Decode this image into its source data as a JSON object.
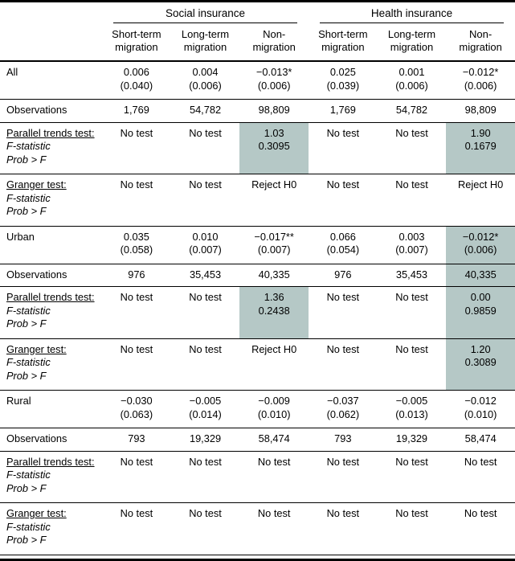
{
  "colors": {
    "highlight": "#b5c8c6",
    "rule": "#000000",
    "background": "#ffffff"
  },
  "header": {
    "groups": [
      {
        "label": "Social insurance"
      },
      {
        "label": "Health insurance"
      }
    ],
    "columns": [
      "Short-term\nmigration",
      "Long-term\nmigration",
      "Non-\nmigration",
      "Short-term\nmigration",
      "Long-term\nmigration",
      "Non-\nmigration"
    ]
  },
  "rows": [
    {
      "name": "all-coefficient",
      "kind": "coef",
      "label": [
        "All"
      ],
      "cells": [
        {
          "lines": [
            "0.006",
            "(0.040)"
          ]
        },
        {
          "lines": [
            "0.004",
            "(0.006)"
          ]
        },
        {
          "lines": [
            "−0.013*",
            "(0.006)"
          ]
        },
        {
          "lines": [
            "0.025",
            "(0.039)"
          ]
        },
        {
          "lines": [
            "0.001",
            "(0.006)"
          ]
        },
        {
          "lines": [
            "−0.012*",
            "(0.006)"
          ]
        }
      ]
    },
    {
      "name": "all-observations",
      "kind": "obs",
      "label": [
        "Observations"
      ],
      "cells": [
        {
          "lines": [
            "1,769"
          ]
        },
        {
          "lines": [
            "54,782"
          ]
        },
        {
          "lines": [
            "98,809"
          ]
        },
        {
          "lines": [
            "1,769"
          ]
        },
        {
          "lines": [
            "54,782"
          ]
        },
        {
          "lines": [
            "98,809"
          ]
        }
      ]
    },
    {
      "name": "all-parallel-trends-test",
      "kind": "test",
      "label": [
        "Parallel trends test:",
        "F-statistic",
        "Prob > F"
      ],
      "cells": [
        {
          "lines": [
            "No test"
          ]
        },
        {
          "lines": [
            "No test"
          ]
        },
        {
          "lines": [
            "1.03",
            "0.3095"
          ],
          "hl": true
        },
        {
          "lines": [
            "No test"
          ]
        },
        {
          "lines": [
            "No test"
          ]
        },
        {
          "lines": [
            "1.90",
            "0.1679"
          ],
          "hl": true
        }
      ]
    },
    {
      "name": "all-granger-test",
      "kind": "test",
      "label": [
        "Granger test:",
        "F-statistic",
        "Prob > F"
      ],
      "cells": [
        {
          "lines": [
            "No test"
          ]
        },
        {
          "lines": [
            "No test"
          ]
        },
        {
          "lines": [
            "Reject H0"
          ]
        },
        {
          "lines": [
            "No test"
          ]
        },
        {
          "lines": [
            "No test"
          ]
        },
        {
          "lines": [
            "Reject H0"
          ]
        }
      ]
    },
    {
      "name": "urban-coefficient",
      "kind": "coef",
      "label": [
        "Urban"
      ],
      "cells": [
        {
          "lines": [
            "0.035",
            "(0.058)"
          ]
        },
        {
          "lines": [
            "0.010",
            "(0.007)"
          ]
        },
        {
          "lines": [
            "−0.017**",
            "(0.007)"
          ]
        },
        {
          "lines": [
            "0.066",
            "(0.054)"
          ]
        },
        {
          "lines": [
            "0.003",
            "(0.007)"
          ]
        },
        {
          "lines": [
            "−0.012*",
            "(0.006)"
          ],
          "hl": true
        }
      ]
    },
    {
      "name": "urban-observations",
      "kind": "obs",
      "label": [
        "Observations"
      ],
      "cells": [
        {
          "lines": [
            "976"
          ]
        },
        {
          "lines": [
            "35,453"
          ]
        },
        {
          "lines": [
            "40,335"
          ]
        },
        {
          "lines": [
            "976"
          ]
        },
        {
          "lines": [
            "35,453"
          ]
        },
        {
          "lines": [
            "40,335"
          ],
          "hl": true
        }
      ]
    },
    {
      "name": "urban-parallel-trends-test",
      "kind": "test",
      "label": [
        "Parallel trends test:",
        "F-statistic",
        "Prob > F"
      ],
      "cells": [
        {
          "lines": [
            "No test"
          ]
        },
        {
          "lines": [
            "No test"
          ]
        },
        {
          "lines": [
            "1.36",
            "0.2438"
          ],
          "hl": true
        },
        {
          "lines": [
            "No test"
          ]
        },
        {
          "lines": [
            "No test"
          ]
        },
        {
          "lines": [
            "0.00",
            "0.9859"
          ],
          "hl": true
        }
      ]
    },
    {
      "name": "urban-granger-test",
      "kind": "test",
      "label": [
        "Granger test:",
        "F-statistic",
        "Prob > F"
      ],
      "cells": [
        {
          "lines": [
            "No test"
          ]
        },
        {
          "lines": [
            "No test"
          ]
        },
        {
          "lines": [
            "Reject H0"
          ]
        },
        {
          "lines": [
            "No test"
          ]
        },
        {
          "lines": [
            "No test"
          ]
        },
        {
          "lines": [
            "1.20",
            "0.3089"
          ],
          "hl": true
        }
      ]
    },
    {
      "name": "rural-coefficient",
      "kind": "coef",
      "label": [
        "Rural"
      ],
      "cells": [
        {
          "lines": [
            "−0.030",
            "(0.063)"
          ]
        },
        {
          "lines": [
            "−0.005",
            "(0.014)"
          ]
        },
        {
          "lines": [
            "−0.009",
            "(0.010)"
          ]
        },
        {
          "lines": [
            "−0.037",
            "(0.062)"
          ]
        },
        {
          "lines": [
            "−0.005",
            "(0.013)"
          ]
        },
        {
          "lines": [
            "−0.012",
            "(0.010)"
          ]
        }
      ]
    },
    {
      "name": "rural-observations",
      "kind": "obs",
      "label": [
        "Observations"
      ],
      "cells": [
        {
          "lines": [
            "793"
          ]
        },
        {
          "lines": [
            "19,329"
          ]
        },
        {
          "lines": [
            "58,474"
          ]
        },
        {
          "lines": [
            "793"
          ]
        },
        {
          "lines": [
            "19,329"
          ]
        },
        {
          "lines": [
            "58,474"
          ]
        }
      ]
    },
    {
      "name": "rural-parallel-trends-test",
      "kind": "test",
      "label": [
        "Parallel trends test:",
        "F-statistic",
        "Prob > F"
      ],
      "cells": [
        {
          "lines": [
            "No test"
          ]
        },
        {
          "lines": [
            "No test"
          ]
        },
        {
          "lines": [
            "No test"
          ]
        },
        {
          "lines": [
            "No test"
          ]
        },
        {
          "lines": [
            "No test"
          ]
        },
        {
          "lines": [
            "No test"
          ]
        }
      ]
    },
    {
      "name": "rural-granger-test",
      "kind": "test",
      "label": [
        "Granger test:",
        "F-statistic",
        "Prob > F"
      ],
      "cells": [
        {
          "lines": [
            "No test"
          ]
        },
        {
          "lines": [
            "No test"
          ]
        },
        {
          "lines": [
            "No test"
          ]
        },
        {
          "lines": [
            "No test"
          ]
        },
        {
          "lines": [
            "No test"
          ]
        },
        {
          "lines": [
            "No test"
          ]
        }
      ]
    }
  ]
}
